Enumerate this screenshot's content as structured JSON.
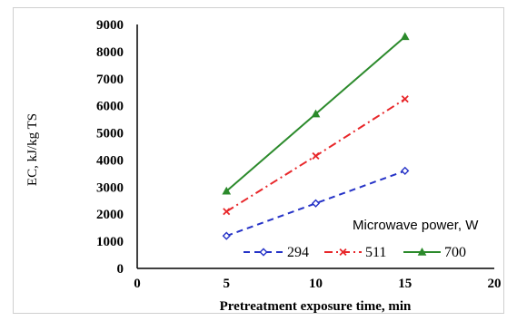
{
  "chart_data": {
    "type": "line",
    "xlabel": "Pretreatment exposure time, min",
    "ylabel": "EC, kJ/kg TS",
    "xlim": [
      0,
      20
    ],
    "ylim": [
      0,
      9000
    ],
    "xticks": [
      0,
      5,
      10,
      15,
      20
    ],
    "yticks": [
      0,
      1000,
      2000,
      3000,
      4000,
      5000,
      6000,
      7000,
      8000,
      9000
    ],
    "grid": false,
    "legend": {
      "title": "Microwave power, W",
      "placement": "bottom-right"
    },
    "series": [
      {
        "name": "294",
        "x": [
          5,
          10,
          15
        ],
        "y": [
          1200,
          2400,
          3600
        ],
        "color": "#2633c7",
        "dash": "dashed",
        "marker": "diamond-open"
      },
      {
        "name": "511",
        "x": [
          5,
          10,
          15
        ],
        "y": [
          2100,
          4150,
          6250
        ],
        "color": "#e8272a",
        "dash": "dash-dot",
        "marker": "x"
      },
      {
        "name": "700",
        "x": [
          5,
          10,
          15
        ],
        "y": [
          2850,
          5700,
          8550
        ],
        "color": "#2b8a2b",
        "dash": "solid",
        "marker": "triangle-filled"
      }
    ]
  }
}
